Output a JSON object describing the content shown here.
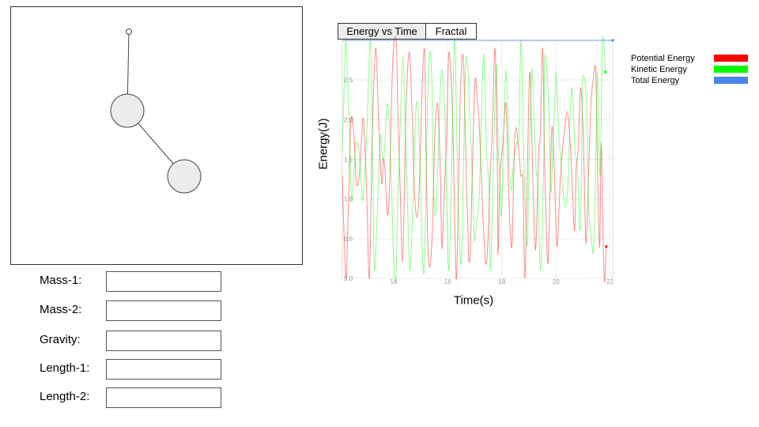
{
  "simulation": {
    "bob1_color": "#ececec",
    "bob2_color": "#ececec",
    "rod_color": "#444444"
  },
  "params": [
    {
      "id": "mass-1",
      "label": "Mass-1:",
      "value": "",
      "placeholder": ""
    },
    {
      "id": "mass-2",
      "label": "Mass-2:",
      "value": "",
      "placeholder": ""
    },
    {
      "id": "gravity",
      "label": "Gravity:",
      "value": "",
      "placeholder": ""
    },
    {
      "id": "length-1",
      "label": "Length-1:",
      "value": "",
      "placeholder": ""
    },
    {
      "id": "length-2",
      "label": "Length-2:",
      "value": "",
      "placeholder": ""
    }
  ],
  "tabs": [
    {
      "label": "Energy vs Time",
      "active": true
    },
    {
      "label": "Fractal",
      "active": false
    }
  ],
  "chart_data": {
    "type": "line",
    "title": "",
    "xlabel": "Time(s)",
    "ylabel": "Energy(J)",
    "xlim": [
      12.1,
      22.1
    ],
    "ylim": [
      0.0,
      3.0
    ],
    "x_ticks": [
      14,
      16,
      18,
      20,
      22
    ],
    "y_ticks": [
      0.0,
      0.5,
      1.0,
      1.5,
      2.0,
      2.5
    ],
    "x_tick_labels": [
      "14",
      "16",
      "18",
      "20",
      "22"
    ],
    "y_tick_labels": [
      "0.0",
      "0.5",
      "1.0",
      "1.5",
      "2.0",
      "2.5"
    ],
    "grid": true,
    "legend_position": "right",
    "series": [
      {
        "name": "Potential Energy",
        "color": "#ff0000",
        "x": [
          12.1,
          12.15,
          12.24,
          12.33,
          12.42,
          12.53,
          12.62,
          12.73,
          12.81,
          12.88,
          12.99,
          13.1,
          13.2,
          13.33,
          13.44,
          13.55,
          13.62,
          13.68,
          13.77,
          13.85,
          13.96,
          14.09,
          14.16,
          14.25,
          14.32,
          14.39,
          14.46,
          14.58,
          14.69,
          14.78,
          14.89,
          14.98,
          15.06,
          15.15,
          15.2,
          15.29,
          15.42,
          15.52,
          15.63,
          15.71,
          15.78,
          15.84,
          15.95,
          16.04,
          16.18,
          16.31,
          16.4,
          16.47,
          16.57,
          16.65,
          16.77,
          16.84,
          16.88,
          16.93,
          17.01,
          17.08,
          17.17,
          17.31,
          17.44,
          17.58,
          17.64,
          17.75,
          17.83,
          17.86,
          17.93,
          18.04,
          18.15,
          18.26,
          18.37,
          18.46,
          18.53,
          18.63,
          18.7,
          18.78,
          18.85,
          18.95,
          19.03,
          19.12,
          19.19,
          19.26,
          19.36,
          19.42,
          19.51,
          19.58,
          19.69,
          19.76,
          19.85,
          19.94,
          20.04,
          20.14,
          20.21,
          20.3,
          20.41,
          20.51,
          20.6,
          20.69,
          20.75,
          20.82,
          20.91,
          21.01,
          21.1,
          21.16,
          21.28,
          21.38,
          21.47,
          21.55,
          21.62,
          21.68,
          21.78,
          21.86
        ],
        "values": [
          1.3,
          0.7,
          0.0,
          1.0,
          2.0,
          1.8,
          1.2,
          1.3,
          1.75,
          2.0,
          1.2,
          0.0,
          1.7,
          2.9,
          2.0,
          1.2,
          1.5,
          1.35,
          0.8,
          1.2,
          2.7,
          3.0,
          2.0,
          1.0,
          0.2,
          1.0,
          2.2,
          2.85,
          2.0,
          1.0,
          0.8,
          1.5,
          2.5,
          2.85,
          1.5,
          0.2,
          0.5,
          1.8,
          2.2,
          1.5,
          0.4,
          0.8,
          1.7,
          2.85,
          2.0,
          0.0,
          1.2,
          2.4,
          2.8,
          1.8,
          0.3,
          0.4,
          1.0,
          1.65,
          2.5,
          2.3,
          1.9,
          0.7,
          0.2,
          1.4,
          1.8,
          2.9,
          1.5,
          0.3,
          1.3,
          1.7,
          2.2,
          1.0,
          0.4,
          1.6,
          1.9,
          1.6,
          1.3,
          1.2,
          0.0,
          1.5,
          2.6,
          1.6,
          0.7,
          0.4,
          1.6,
          1.8,
          2.9,
          1.5,
          0.2,
          0.8,
          1.9,
          1.35,
          0.4,
          1.1,
          1.5,
          1.8,
          2.1,
          1.8,
          1.2,
          0.6,
          1.4,
          1.6,
          2.4,
          1.8,
          0.5,
          0.8,
          2.1,
          2.5,
          2.6,
          1.2,
          0.4,
          1.7,
          0.0,
          0.4
        ]
      },
      {
        "name": "Kinetic Energy",
        "color": "#00ff00",
        "x": [
          12.1,
          12.16,
          12.23,
          12.35,
          12.44,
          12.52,
          12.6,
          12.72,
          12.8,
          12.87,
          13.0,
          13.14,
          13.23,
          13.29,
          13.41,
          13.51,
          13.59,
          13.67,
          13.75,
          13.86,
          13.99,
          14.08,
          14.15,
          14.25,
          14.34,
          14.42,
          14.52,
          14.61,
          14.71,
          14.8,
          14.88,
          14.97,
          15.04,
          15.13,
          15.21,
          15.31,
          15.41,
          15.47,
          15.55,
          15.64,
          15.76,
          15.88,
          15.94,
          16.03,
          16.12,
          16.25,
          16.33,
          16.42,
          16.5,
          16.57,
          16.66,
          16.75,
          16.82,
          16.9,
          16.98,
          17.06,
          17.17,
          17.26,
          17.34,
          17.43,
          17.52,
          17.58,
          17.69,
          17.79,
          17.86,
          17.92,
          17.99,
          18.08,
          18.16,
          18.28,
          18.36,
          18.42,
          18.54,
          18.63,
          18.71,
          18.81,
          18.93,
          19.0,
          19.07,
          19.12,
          19.26,
          19.33,
          19.43,
          19.55,
          19.59,
          19.73,
          19.81,
          19.89,
          20.01,
          20.09,
          20.18,
          20.24,
          20.34,
          20.45,
          20.5,
          20.59,
          20.71,
          20.8,
          20.88,
          20.94,
          20.99,
          21.13,
          21.21,
          21.31,
          21.4,
          21.49,
          21.54,
          21.63,
          21.73,
          21.83
        ],
        "values": [
          1.6,
          2.3,
          3.0,
          2.0,
          1.0,
          1.3,
          1.7,
          1.6,
          1.2,
          1.0,
          1.8,
          3.0,
          1.3,
          0.1,
          1.0,
          1.8,
          1.5,
          1.65,
          2.2,
          1.8,
          0.3,
          0.0,
          1.0,
          2.0,
          2.8,
          2.0,
          0.8,
          0.1,
          1.0,
          2.0,
          2.2,
          1.5,
          0.5,
          0.1,
          1.5,
          2.8,
          2.5,
          1.2,
          0.8,
          1.5,
          2.6,
          2.2,
          1.3,
          0.1,
          1.0,
          3.0,
          1.8,
          0.6,
          0.2,
          1.2,
          2.7,
          2.6,
          2.0,
          1.35,
          0.5,
          0.7,
          1.1,
          2.3,
          2.8,
          1.6,
          1.2,
          0.1,
          1.5,
          2.7,
          1.7,
          1.3,
          0.8,
          2.0,
          2.6,
          1.4,
          1.1,
          1.4,
          1.7,
          1.8,
          3.0,
          1.5,
          0.4,
          1.4,
          2.3,
          2.6,
          1.4,
          1.2,
          0.1,
          1.5,
          2.8,
          2.2,
          1.1,
          1.65,
          2.6,
          1.9,
          1.5,
          1.2,
          0.9,
          1.2,
          1.8,
          2.4,
          1.6,
          1.4,
          0.6,
          1.2,
          2.5,
          2.2,
          0.9,
          0.5,
          0.4,
          1.8,
          2.6,
          1.3,
          3.0,
          2.6
        ]
      },
      {
        "name": "Total Energy",
        "color": "#4a86e8",
        "x": [
          12.1,
          22.1
        ],
        "values": [
          3.0,
          3.0
        ]
      }
    ]
  }
}
